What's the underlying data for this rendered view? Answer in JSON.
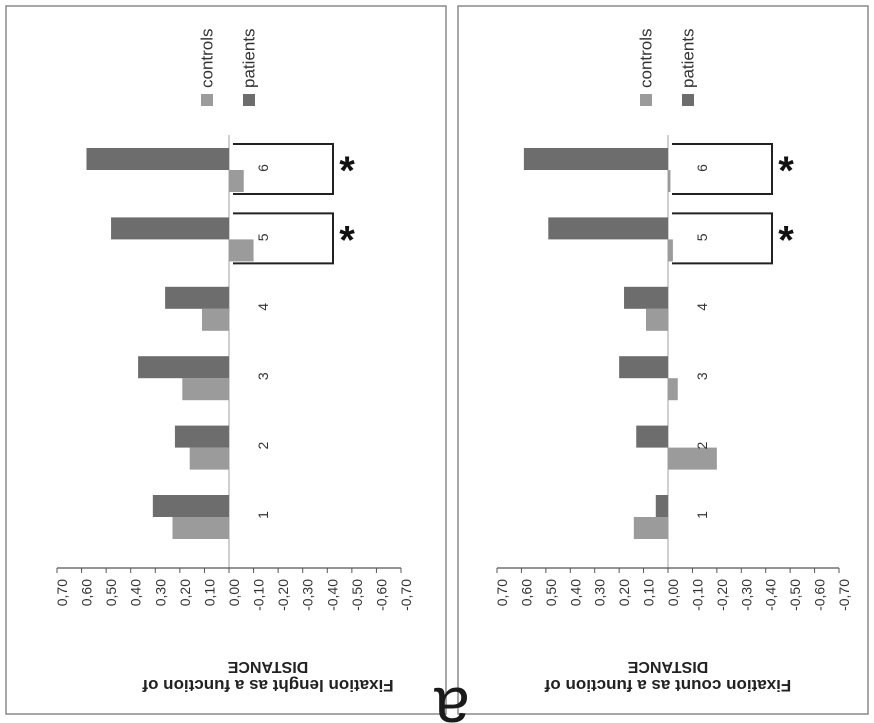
{
  "figure_letter": "a",
  "colors": {
    "controls": "#9b9b9b",
    "patients": "#6d6d6d",
    "frame": "#8a8a8a",
    "axis": "#555555"
  },
  "chart_data": [
    {
      "type": "bar",
      "orientation": "horizontal-bars-rotated",
      "title": "Fixation lenght as a function of DISTANCE",
      "title_lines": [
        "Fixation lenght as a function of",
        "DISTANCE"
      ],
      "categories": [
        "1",
        "2",
        "3",
        "4",
        "5",
        "6"
      ],
      "series": [
        {
          "name": "controls",
          "values": [
            0.23,
            0.16,
            0.19,
            0.11,
            -0.1,
            -0.06
          ]
        },
        {
          "name": "patients",
          "values": [
            0.31,
            0.22,
            0.37,
            0.26,
            0.48,
            0.58
          ]
        }
      ],
      "ylim": [
        -0.7,
        0.7
      ],
      "ticks": [
        "0,70",
        "0,60",
        "0,50",
        "0,40",
        "0,30",
        "0,20",
        "0,10",
        "0,00",
        "-0,10",
        "-0,20",
        "-0,30",
        "-0,40",
        "-0,50",
        "-0,60",
        "-0,70"
      ],
      "significant": [
        "5",
        "6"
      ],
      "significance_mark": "*",
      "legend": "top"
    },
    {
      "type": "bar",
      "orientation": "horizontal-bars-rotated",
      "title": "Fixation count as a function of DISTANCE",
      "title_lines": [
        "Fixation count as a function of",
        "DISTANCE"
      ],
      "categories": [
        "1",
        "2",
        "3",
        "4",
        "5",
        "6"
      ],
      "series": [
        {
          "name": "controls",
          "values": [
            0.14,
            -0.2,
            -0.04,
            0.09,
            -0.02,
            -0.01
          ]
        },
        {
          "name": "patients",
          "values": [
            0.05,
            0.13,
            0.2,
            0.18,
            0.49,
            0.59
          ]
        }
      ],
      "ylim": [
        -0.7,
        0.7
      ],
      "ticks": [
        "0,70",
        "0,60",
        "0,50",
        "0,40",
        "0,30",
        "0,20",
        "0,10",
        "0,00",
        "-0,10",
        "-0,20",
        "-0,30",
        "-0,40",
        "-0,50",
        "-0,60",
        "-0,70"
      ],
      "significant": [
        "5",
        "6"
      ],
      "significance_mark": "*",
      "legend": "top"
    }
  ]
}
